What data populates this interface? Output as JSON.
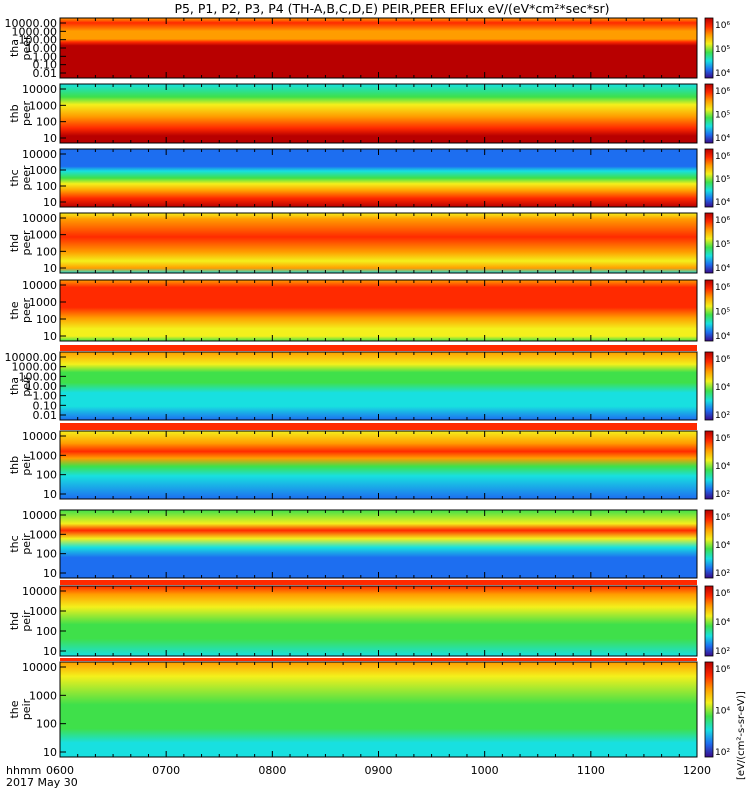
{
  "title": "P5, P1, P2, P3, P4 (TH-A,B,C,D,E) PEIR,PEER EFlux eV/(eV*cm²*sec*sr)",
  "colorbar_title": "[eV/(cm²-s-sr-eV)]",
  "colorbar_ticks": [
    "10⁴",
    "10⁵",
    "10⁶"
  ],
  "colorbar_ticks_small": [
    "10²",
    "10⁴",
    "10⁶"
  ],
  "xaxis": {
    "label_line1": "hhmm",
    "label_line2": "2017 May 30",
    "ticks": [
      "0600",
      "0700",
      "0800",
      "0900",
      "1000",
      "1100",
      "1200"
    ]
  },
  "chart_data": {
    "type": "heatmap",
    "x_range": [
      "0600",
      "1200"
    ],
    "x_unit": "hhmm UT",
    "date": "2017 May 30",
    "z_unit": "eV/(eV*cm²*sec*sr)",
    "colormap": [
      "#3a0a8a",
      "#1d6ef0",
      "#18e0e0",
      "#3fe04a",
      "#f4f01c",
      "#ff9d00",
      "#ff2a00",
      "#b80000"
    ],
    "panels": [
      {
        "id": "tha-peer",
        "label_top": "tha",
        "label_bot": "peer",
        "y_ticks": [
          "10000.00",
          "1000.00",
          "100.00",
          "10.00",
          "1.00",
          "0.10",
          "0.01"
        ],
        "y_range": [
          0.01,
          30000
        ],
        "profile": "tha_peer",
        "dataset": "PEER"
      },
      {
        "id": "thb-peer",
        "label_top": "thb",
        "label_bot": "peer",
        "y_ticks": [
          "10000",
          "1000",
          "100",
          "10"
        ],
        "y_range": [
          7,
          30000
        ],
        "profile": "thb_peer",
        "dataset": "PEER"
      },
      {
        "id": "thc-peer",
        "label_top": "thc",
        "label_bot": "peer",
        "y_ticks": [
          "10000",
          "1000",
          "100",
          "10"
        ],
        "y_range": [
          7,
          30000
        ],
        "profile": "thc_peer",
        "dataset": "PEER"
      },
      {
        "id": "thd-peer",
        "label_top": "thd",
        "label_bot": "peer",
        "y_ticks": [
          "10000",
          "1000",
          "100",
          "10"
        ],
        "y_range": [
          7,
          30000
        ],
        "profile": "thd_peer",
        "dataset": "PEER"
      },
      {
        "id": "the-peer",
        "label_top": "the",
        "label_bot": "peer",
        "y_ticks": [
          "10000",
          "1000",
          "100",
          "10"
        ],
        "y_range": [
          7,
          30000
        ],
        "profile": "the_peer",
        "dataset": "PEER"
      },
      {
        "id": "tha-peir",
        "label_top": "tha",
        "label_bot": "peir",
        "y_ticks": [
          "10000.00",
          "1000.00",
          "100.00",
          "10.00",
          "1.00",
          "0.10",
          "0.01"
        ],
        "y_range": [
          0.01,
          30000
        ],
        "profile": "tha_peir",
        "dataset": "PEIR"
      },
      {
        "id": "thb-peir",
        "label_top": "thb",
        "label_bot": "peir",
        "y_ticks": [
          "10000",
          "1000",
          "100",
          "10"
        ],
        "y_range": [
          7,
          30000
        ],
        "profile": "thb_peir",
        "dataset": "PEIR"
      },
      {
        "id": "thc-peir",
        "label_top": "thc",
        "label_bot": "peir",
        "y_ticks": [
          "10000",
          "1000",
          "100",
          "10"
        ],
        "y_range": [
          7,
          30000
        ],
        "profile": "thc_peir",
        "dataset": "PEIR"
      },
      {
        "id": "thd-peir",
        "label_top": "thd",
        "label_bot": "peir",
        "y_ticks": [
          "10000",
          "1000",
          "100",
          "10"
        ],
        "y_range": [
          7,
          30000
        ],
        "profile": "thd_peir",
        "dataset": "PEIR"
      },
      {
        "id": "the-peir",
        "label_top": "the",
        "label_bot": "peir",
        "y_ticks": [
          "10000",
          "1000",
          "100",
          "10"
        ],
        "y_range": [
          7,
          30000
        ],
        "profile": "the_peir",
        "dataset": "PEIR"
      }
    ]
  }
}
